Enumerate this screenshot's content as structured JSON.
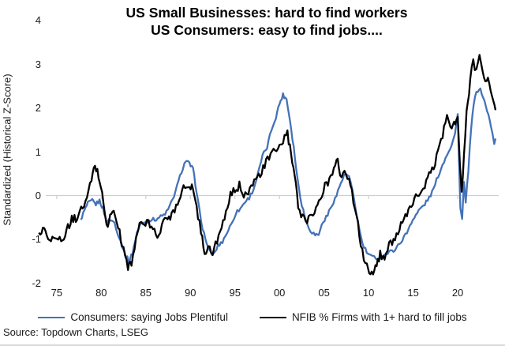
{
  "chart": {
    "title_line1": "US Small Businesses: hard to find workers",
    "title_line2": "US Consumers: easy to find jobs....",
    "source": "Source: Topdown Charts, LSEG",
    "colors": {
      "consumers_blue": "#4472b8",
      "nfib_black": "#000000",
      "gridline_gray": "#cfcfcf",
      "text": "#1a1a1a"
    }
  },
  "chart_data": {
    "type": "line",
    "title": "US Small Businesses: hard to find workers / US Consumers: easy to find jobs....",
    "xlabel": "",
    "ylabel": "Standardized (Historical Z-Score)",
    "xlim": [
      1972.8,
      2024.6
    ],
    "ylim": [
      -2.3,
      4.05
    ],
    "grid": "zero-line only (light gray x-axis at z=0 with 5-year tick nubs)",
    "legend_position": "bottom-center",
    "y_ticks": [
      {
        "label": "4",
        "value": 4
      },
      {
        "label": "3",
        "value": 3
      },
      {
        "label": "2",
        "value": 2
      },
      {
        "label": "1",
        "value": 1
      },
      {
        "label": "0",
        "value": 0
      },
      {
        "label": "-1",
        "value": -1
      },
      {
        "label": "-2",
        "value": -2
      }
    ],
    "x_ticks": [
      {
        "label": "75",
        "year": 1975
      },
      {
        "label": "80",
        "year": 1980
      },
      {
        "label": "85",
        "year": 1985
      },
      {
        "label": "90",
        "year": 1990
      },
      {
        "label": "95",
        "year": 1995
      },
      {
        "label": "00",
        "year": 2000
      },
      {
        "label": "05",
        "year": 2005
      },
      {
        "label": "10",
        "year": 2010
      },
      {
        "label": "15",
        "year": 2015
      },
      {
        "label": "20",
        "year": 2020
      }
    ],
    "series": [
      {
        "name": "Consumers: saying Jobs Plentiful",
        "color": "#4472b8",
        "width": 2.3,
        "noise": 0.045,
        "points": [
          [
            1977.7,
            -0.55
          ],
          [
            1978.1,
            -0.35
          ],
          [
            1978.5,
            -0.18
          ],
          [
            1979.0,
            -0.12
          ],
          [
            1979.4,
            -0.2
          ],
          [
            1979.8,
            -0.12
          ],
          [
            1980.2,
            -0.3
          ],
          [
            1980.6,
            -0.6
          ],
          [
            1981.0,
            -0.55
          ],
          [
            1981.5,
            -0.62
          ],
          [
            1982.0,
            -0.95
          ],
          [
            1982.6,
            -1.3
          ],
          [
            1983.1,
            -1.5
          ],
          [
            1983.5,
            -1.32
          ],
          [
            1984.0,
            -0.85
          ],
          [
            1984.5,
            -0.62
          ],
          [
            1985.0,
            -0.6
          ],
          [
            1985.5,
            -0.55
          ],
          [
            1986.0,
            -0.55
          ],
          [
            1986.5,
            -0.5
          ],
          [
            1987.0,
            -0.45
          ],
          [
            1987.5,
            -0.33
          ],
          [
            1988.0,
            -0.1
          ],
          [
            1988.5,
            0.2
          ],
          [
            1989.0,
            0.55
          ],
          [
            1989.5,
            0.8
          ],
          [
            1989.9,
            0.72
          ],
          [
            1990.3,
            0.6
          ],
          [
            1990.7,
            0.1
          ],
          [
            1991.2,
            -0.6
          ],
          [
            1991.7,
            -1.0
          ],
          [
            1992.2,
            -1.3
          ],
          [
            1992.6,
            -1.35
          ],
          [
            1993.1,
            -1.15
          ],
          [
            1993.6,
            -1.05
          ],
          [
            1994.1,
            -0.85
          ],
          [
            1994.6,
            -0.65
          ],
          [
            1995.1,
            -0.4
          ],
          [
            1995.6,
            -0.3
          ],
          [
            1996.1,
            -0.15
          ],
          [
            1996.6,
            -0.05
          ],
          [
            1997.1,
            0.15
          ],
          [
            1997.6,
            0.5
          ],
          [
            1998.1,
            0.9
          ],
          [
            1998.6,
            1.1
          ],
          [
            1999.1,
            1.5
          ],
          [
            1999.6,
            1.8
          ],
          [
            2000.0,
            2.1
          ],
          [
            2000.4,
            2.3
          ],
          [
            2000.8,
            2.2
          ],
          [
            2001.2,
            1.7
          ],
          [
            2001.6,
            1.1
          ],
          [
            2002.0,
            0.4
          ],
          [
            2002.5,
            -0.2
          ],
          [
            2003.0,
            -0.6
          ],
          [
            2003.5,
            -0.8
          ],
          [
            2004.0,
            -0.9
          ],
          [
            2004.4,
            -0.88
          ],
          [
            2004.9,
            -0.6
          ],
          [
            2005.4,
            -0.45
          ],
          [
            2005.9,
            -0.2
          ],
          [
            2006.4,
            0.0
          ],
          [
            2006.9,
            0.3
          ],
          [
            2007.4,
            0.5
          ],
          [
            2007.8,
            0.42
          ],
          [
            2008.3,
            0.0
          ],
          [
            2008.8,
            -0.6
          ],
          [
            2009.3,
            -1.1
          ],
          [
            2009.8,
            -1.3
          ],
          [
            2010.3,
            -1.4
          ],
          [
            2010.8,
            -1.42
          ],
          [
            2011.3,
            -1.45
          ],
          [
            2011.8,
            -1.35
          ],
          [
            2012.3,
            -1.3
          ],
          [
            2012.8,
            -1.25
          ],
          [
            2013.3,
            -1.15
          ],
          [
            2013.8,
            -1.0
          ],
          [
            2014.3,
            -0.85
          ],
          [
            2014.8,
            -0.6
          ],
          [
            2015.3,
            -0.45
          ],
          [
            2015.8,
            -0.3
          ],
          [
            2016.3,
            -0.2
          ],
          [
            2016.8,
            -0.05
          ],
          [
            2017.3,
            0.15
          ],
          [
            2017.8,
            0.45
          ],
          [
            2018.3,
            0.7
          ],
          [
            2018.8,
            0.95
          ],
          [
            2019.3,
            1.15
          ],
          [
            2019.7,
            1.4
          ],
          [
            2020.0,
            1.9
          ],
          [
            2020.3,
            -0.3
          ],
          [
            2020.5,
            -0.55
          ],
          [
            2020.7,
            0.3
          ],
          [
            2020.9,
            -0.2
          ],
          [
            2021.2,
            0.6
          ],
          [
            2021.5,
            1.5
          ],
          [
            2021.8,
            2.1
          ],
          [
            2022.1,
            2.35
          ],
          [
            2022.4,
            2.45
          ],
          [
            2022.7,
            2.35
          ],
          [
            2023.0,
            2.15
          ],
          [
            2023.3,
            1.95
          ],
          [
            2023.6,
            1.7
          ],
          [
            2023.9,
            1.4
          ],
          [
            2024.1,
            1.2
          ],
          [
            2024.25,
            1.3
          ]
        ]
      },
      {
        "name": "NFIB % Firms with 1+ hard to fill jobs",
        "color": "#000000",
        "width": 2.3,
        "noise": 0.1,
        "points": [
          [
            1973.0,
            -0.85
          ],
          [
            1973.6,
            -0.8
          ],
          [
            1974.2,
            -0.95
          ],
          [
            1975.0,
            -1.0
          ],
          [
            1975.5,
            -1.05
          ],
          [
            1976.1,
            -0.8
          ],
          [
            1976.7,
            -0.55
          ],
          [
            1977.3,
            -0.5
          ],
          [
            1977.9,
            -0.28
          ],
          [
            1978.4,
            -0.08
          ],
          [
            1978.9,
            0.35
          ],
          [
            1979.3,
            0.7
          ],
          [
            1979.7,
            0.45
          ],
          [
            1980.1,
            0.1
          ],
          [
            1980.6,
            -0.72
          ],
          [
            1981.0,
            -0.5
          ],
          [
            1981.4,
            -0.33
          ],
          [
            1981.9,
            -0.72
          ],
          [
            1982.5,
            -1.25
          ],
          [
            1983.0,
            -1.62
          ],
          [
            1983.4,
            -1.52
          ],
          [
            1983.9,
            -1.05
          ],
          [
            1984.3,
            -0.6
          ],
          [
            1984.8,
            -0.68
          ],
          [
            1985.3,
            -0.62
          ],
          [
            1985.8,
            -0.78
          ],
          [
            1986.3,
            -0.92
          ],
          [
            1986.8,
            -0.7
          ],
          [
            1987.3,
            -0.52
          ],
          [
            1987.9,
            -0.45
          ],
          [
            1988.4,
            -0.22
          ],
          [
            1988.9,
            0.05
          ],
          [
            1989.4,
            0.25
          ],
          [
            1989.9,
            0.12
          ],
          [
            1990.3,
            0.2
          ],
          [
            1990.7,
            -0.25
          ],
          [
            1991.2,
            -0.85
          ],
          [
            1991.6,
            -1.28
          ],
          [
            1992.0,
            -1.18
          ],
          [
            1992.5,
            -1.35
          ],
          [
            1993.0,
            -1.0
          ],
          [
            1993.5,
            -0.78
          ],
          [
            1994.0,
            -0.42
          ],
          [
            1994.5,
            0.0
          ],
          [
            1995.0,
            0.12
          ],
          [
            1995.5,
            0.22
          ],
          [
            1996.0,
            0.05
          ],
          [
            1996.5,
            0.12
          ],
          [
            1997.0,
            0.25
          ],
          [
            1997.5,
            0.38
          ],
          [
            1998.0,
            0.55
          ],
          [
            1998.5,
            0.75
          ],
          [
            1999.0,
            0.9
          ],
          [
            1999.5,
            1.05
          ],
          [
            2000.0,
            1.1
          ],
          [
            2000.4,
            1.25
          ],
          [
            2000.9,
            1.42
          ],
          [
            2001.3,
            0.9
          ],
          [
            2001.7,
            0.45
          ],
          [
            2002.1,
            -0.22
          ],
          [
            2002.6,
            -0.5
          ],
          [
            2003.1,
            -0.55
          ],
          [
            2003.6,
            -0.42
          ],
          [
            2004.1,
            -0.3
          ],
          [
            2004.6,
            -0.05
          ],
          [
            2005.1,
            0.2
          ],
          [
            2005.6,
            0.35
          ],
          [
            2006.1,
            0.55
          ],
          [
            2006.4,
            0.9
          ],
          [
            2006.8,
            0.5
          ],
          [
            2007.3,
            0.55
          ],
          [
            2007.8,
            0.35
          ],
          [
            2008.3,
            -0.1
          ],
          [
            2008.8,
            -0.68
          ],
          [
            2009.3,
            -1.3
          ],
          [
            2009.8,
            -1.65
          ],
          [
            2010.2,
            -1.72
          ],
          [
            2010.5,
            -1.83
          ],
          [
            2010.9,
            -1.6
          ],
          [
            2011.3,
            -1.35
          ],
          [
            2011.8,
            -1.38
          ],
          [
            2012.3,
            -1.15
          ],
          [
            2012.8,
            -1.0
          ],
          [
            2013.3,
            -0.82
          ],
          [
            2013.8,
            -0.65
          ],
          [
            2014.3,
            -0.45
          ],
          [
            2014.8,
            -0.25
          ],
          [
            2015.3,
            -0.05
          ],
          [
            2015.8,
            0.1
          ],
          [
            2016.3,
            0.2
          ],
          [
            2016.8,
            0.45
          ],
          [
            2017.3,
            0.65
          ],
          [
            2017.8,
            1.0
          ],
          [
            2018.3,
            1.4
          ],
          [
            2018.8,
            1.8
          ],
          [
            2019.2,
            1.55
          ],
          [
            2019.6,
            1.65
          ],
          [
            2020.0,
            1.8
          ],
          [
            2020.25,
            0.6
          ],
          [
            2020.45,
            0.05
          ],
          [
            2020.7,
            0.95
          ],
          [
            2021.0,
            1.85
          ],
          [
            2021.4,
            2.6
          ],
          [
            2021.75,
            3.1
          ],
          [
            2022.1,
            2.8
          ],
          [
            2022.45,
            3.12
          ],
          [
            2022.8,
            2.9
          ],
          [
            2023.1,
            2.55
          ],
          [
            2023.4,
            2.7
          ],
          [
            2023.7,
            2.4
          ],
          [
            2024.0,
            2.2
          ],
          [
            2024.25,
            1.95
          ]
        ]
      }
    ]
  }
}
